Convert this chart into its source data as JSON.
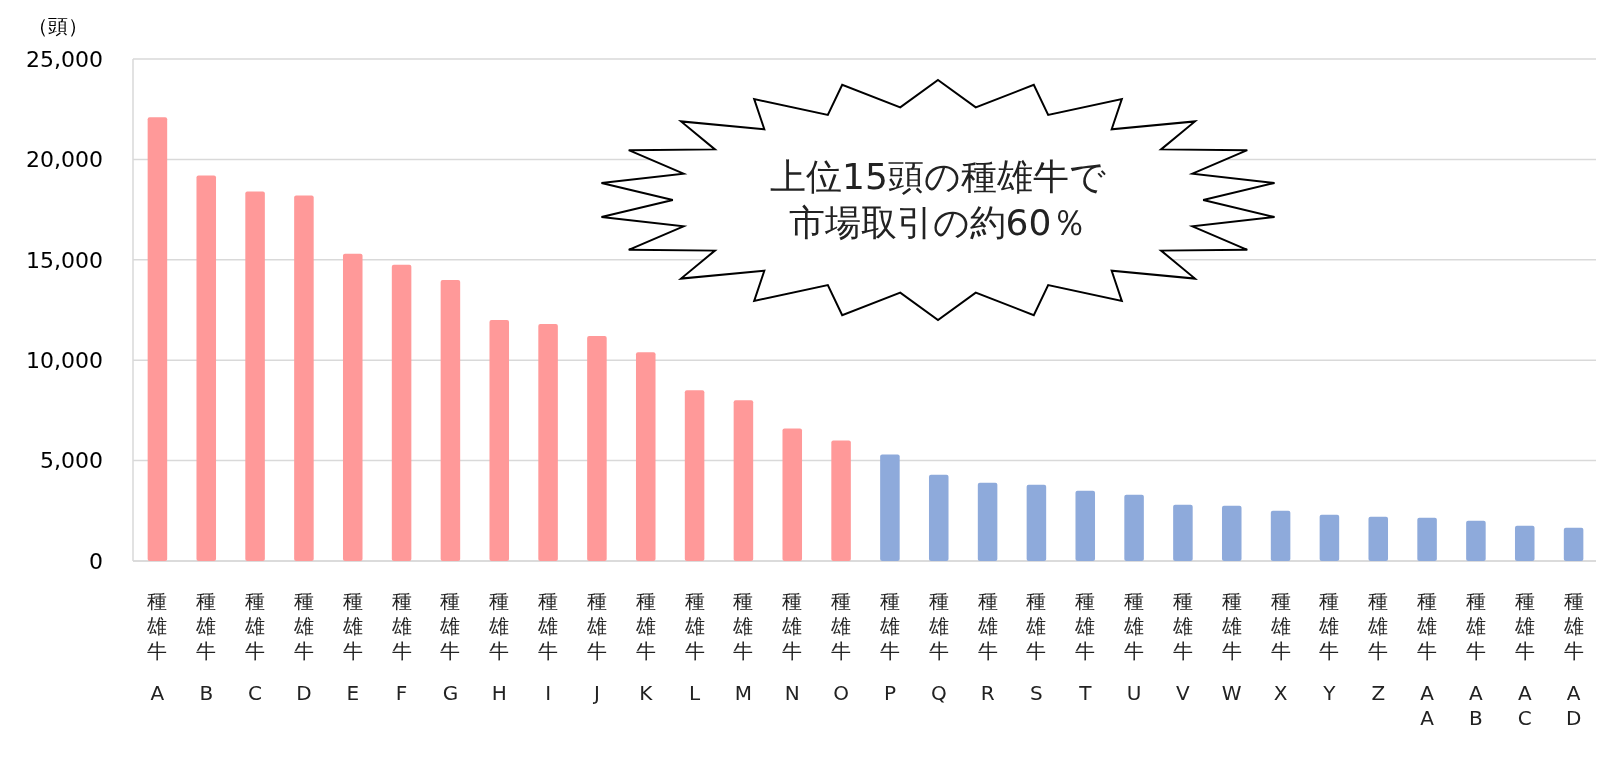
{
  "chart_data": {
    "type": "bar",
    "ylabel": "（頭）",
    "categories": [
      "種雄牛A",
      "種雄牛B",
      "種雄牛C",
      "種雄牛D",
      "種雄牛E",
      "種雄牛F",
      "種雄牛G",
      "種雄牛H",
      "種雄牛I",
      "種雄牛J",
      "種雄牛K",
      "種雄牛L",
      "種雄牛M",
      "種雄牛N",
      "種雄牛O",
      "種雄牛P",
      "種雄牛Q",
      "種雄牛R",
      "種雄牛S",
      "種雄牛T",
      "種雄牛U",
      "種雄牛V",
      "種雄牛W",
      "種雄牛X",
      "種雄牛Y",
      "種雄牛Z",
      "種雄牛AA",
      "種雄牛AB",
      "種雄牛AC",
      "種雄牛AD"
    ],
    "values": [
      22100,
      19200,
      18400,
      18200,
      15300,
      14750,
      14000,
      12000,
      11800,
      11200,
      10400,
      8500,
      8000,
      6600,
      6000,
      5300,
      4300,
      3900,
      3800,
      3500,
      3300,
      2800,
      2750,
      2500,
      2300,
      2200,
      2150,
      2000,
      1750,
      1650
    ],
    "colors": [
      "#ff9999",
      "#ff9999",
      "#ff9999",
      "#ff9999",
      "#ff9999",
      "#ff9999",
      "#ff9999",
      "#ff9999",
      "#ff9999",
      "#ff9999",
      "#ff9999",
      "#ff9999",
      "#ff9999",
      "#ff9999",
      "#ff9999",
      "#8eaadb",
      "#8eaadb",
      "#8eaadb",
      "#8eaadb",
      "#8eaadb",
      "#8eaadb",
      "#8eaadb",
      "#8eaadb",
      "#8eaadb",
      "#8eaadb",
      "#8eaadb",
      "#8eaadb",
      "#8eaadb",
      "#8eaadb",
      "#8eaadb"
    ],
    "ylim": [
      0,
      25000
    ],
    "yticks": [
      {
        "value": 0,
        "label": "0"
      },
      {
        "value": 5000,
        "label": "5,000"
      },
      {
        "value": 10000,
        "label": "10,000"
      },
      {
        "value": 15000,
        "label": "15,000"
      },
      {
        "value": 20000,
        "label": "20,000"
      },
      {
        "value": 25000,
        "label": "25,000"
      }
    ],
    "grid": "y",
    "annotations": [
      "上位15頭の種雄牛で",
      "市場取引の約60％"
    ]
  }
}
